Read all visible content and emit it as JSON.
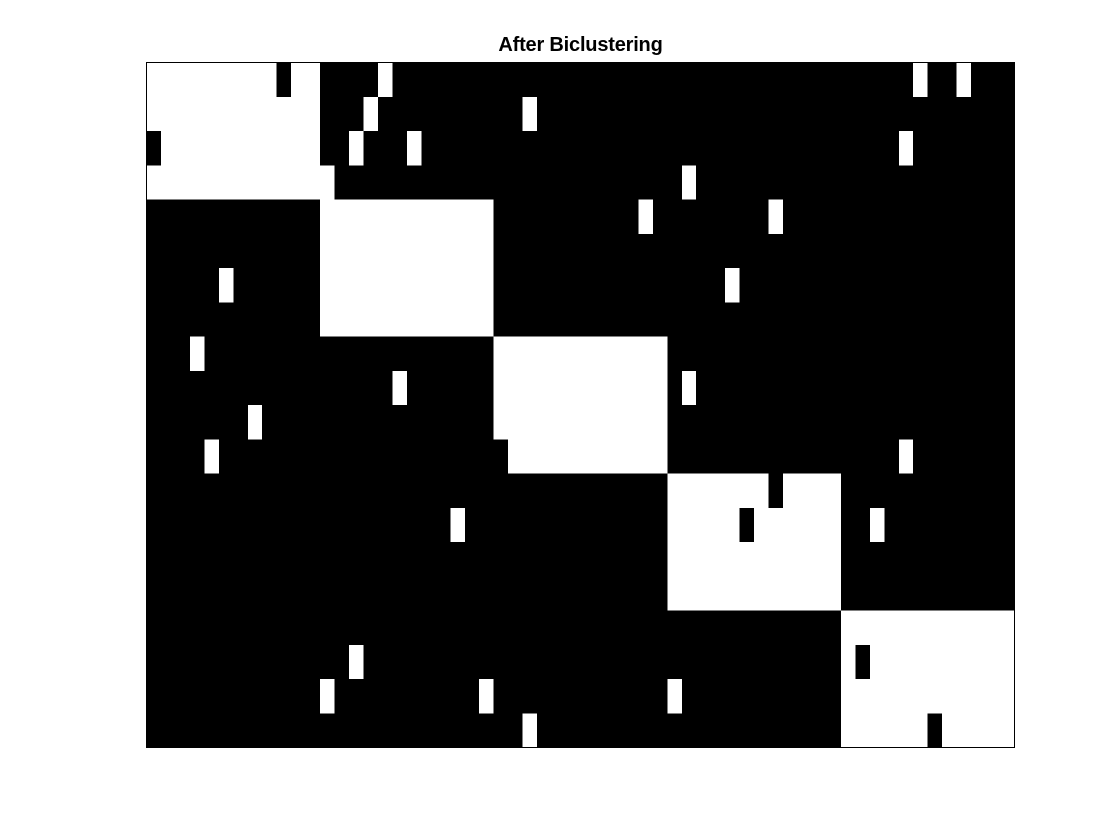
{
  "chart_data": {
    "type": "heatmap",
    "title": "After Biclustering",
    "xlabel": "",
    "ylabel": "",
    "n_rows": 20,
    "n_cols": 60,
    "colors": {
      "one": "#ffffff",
      "zero": "#000000",
      "axes_border": "#000000"
    },
    "row_block_starts": [
      0,
      4,
      8,
      12,
      16
    ],
    "col_block_starts": [
      0,
      12,
      24,
      36,
      48
    ],
    "block_values": [
      [
        1,
        0,
        0,
        0,
        0
      ],
      [
        0,
        1,
        0,
        0,
        0
      ],
      [
        0,
        0,
        1,
        0,
        0
      ],
      [
        0,
        0,
        0,
        1,
        0
      ],
      [
        0,
        0,
        0,
        0,
        1
      ]
    ],
    "flipped_cells": [
      [
        0,
        9
      ],
      [
        0,
        16
      ],
      [
        0,
        53
      ],
      [
        0,
        56
      ],
      [
        1,
        15
      ],
      [
        1,
        26
      ],
      [
        2,
        0
      ],
      [
        2,
        14
      ],
      [
        2,
        18
      ],
      [
        2,
        52
      ],
      [
        3,
        12
      ],
      [
        3,
        37
      ],
      [
        4,
        34
      ],
      [
        4,
        43
      ],
      [
        6,
        5
      ],
      [
        6,
        40
      ],
      [
        8,
        3
      ],
      [
        9,
        17
      ],
      [
        9,
        37
      ],
      [
        10,
        7
      ],
      [
        11,
        4
      ],
      [
        11,
        24
      ],
      [
        11,
        52
      ],
      [
        12,
        43
      ],
      [
        13,
        21
      ],
      [
        13,
        41
      ],
      [
        13,
        50
      ],
      [
        17,
        14
      ],
      [
        17,
        49
      ],
      [
        18,
        12
      ],
      [
        18,
        23
      ],
      [
        18,
        36
      ],
      [
        19,
        26
      ],
      [
        19,
        54
      ]
    ],
    "grid": false,
    "ticks": "none"
  }
}
